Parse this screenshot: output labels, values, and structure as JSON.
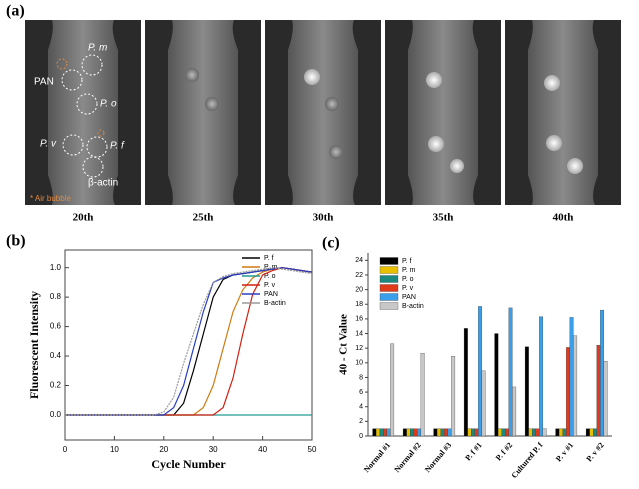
{
  "figure_labels": [
    "(a)",
    "(b)",
    "(c)"
  ],
  "image_panel": {
    "frame_labels": [
      "20th",
      "25th",
      "30th",
      "35th",
      "40th"
    ],
    "target_labels": [
      "P. m",
      "PAN",
      "P. o",
      "P. v",
      "P. f",
      "β-actin"
    ],
    "note": "* Air bubble"
  },
  "chart_data": [
    {
      "type": "line",
      "x_label": "Cycle Number",
      "y_label": "Fluorescent Intensity",
      "x": [
        0,
        2,
        4,
        6,
        8,
        10,
        12,
        14,
        16,
        18,
        20,
        22,
        24,
        26,
        28,
        30,
        32,
        34,
        36,
        38,
        40,
        42,
        44,
        46,
        48,
        50
      ],
      "xlim": [
        0,
        50
      ],
      "xticks": [
        0,
        10,
        20,
        30,
        40,
        50
      ],
      "ylim": [
        -0.17,
        1.12
      ],
      "yticks": [
        {
          "value": 0,
          "label": "0.0"
        },
        0.2,
        0.4,
        0.6,
        0.8,
        {
          "value": 1,
          "label": "1.0"
        }
      ],
      "legend": "upper right",
      "series": [
        {
          "name": "P. f",
          "color": "#000000",
          "values": [
            0,
            0,
            0,
            0,
            0,
            0,
            0,
            0,
            0,
            0,
            0,
            0,
            0.08,
            0.3,
            0.55,
            0.8,
            0.92,
            0.95,
            0.96,
            0.97,
            0.98,
            0.99,
            1.0,
            0.99,
            0.98,
            0.97
          ]
        },
        {
          "name": "P. m",
          "color": "#d07a10",
          "values": [
            0,
            0,
            0,
            0,
            0,
            0,
            0,
            0,
            0,
            0,
            0,
            0,
            0,
            0,
            0.05,
            0.2,
            0.45,
            0.7,
            0.85,
            0.93,
            0.97,
            0.99,
            1.0,
            0.99,
            0.98,
            0.97
          ]
        },
        {
          "name": "P. o",
          "color": "#209a90",
          "values": [
            0,
            0,
            0,
            0,
            0,
            0,
            0,
            0,
            0,
            0,
            0,
            0,
            0,
            0,
            0,
            0,
            0,
            0,
            0,
            0,
            0,
            0,
            0,
            0,
            0,
            0
          ]
        },
        {
          "name": "P. v",
          "color": "#d02010",
          "values": [
            0,
            0,
            0,
            0,
            0,
            0,
            0,
            0,
            0,
            0,
            0,
            0,
            0,
            0,
            0,
            0,
            0.05,
            0.25,
            0.55,
            0.82,
            0.95,
            0.98,
            1.0,
            0.99,
            0.98,
            0.97
          ]
        },
        {
          "name": "PAN",
          "color": "#2a3fc0",
          "values": [
            0,
            0,
            0,
            0,
            0,
            0,
            0,
            0,
            0,
            0,
            0,
            0.05,
            0.2,
            0.45,
            0.7,
            0.9,
            0.93,
            0.95,
            0.96,
            0.97,
            0.98,
            0.99,
            1.0,
            0.99,
            0.98,
            0.97
          ]
        },
        {
          "name": "B-actin",
          "color": "#9a9a9a",
          "values": [
            0,
            0,
            0,
            0,
            0,
            0,
            0,
            0,
            0,
            0,
            0.02,
            0.12,
            0.35,
            0.55,
            0.75,
            0.9,
            0.94,
            0.96,
            0.97,
            0.98,
            0.99,
            1.0,
            0.99,
            0.98,
            0.97,
            0.96
          ]
        }
      ]
    },
    {
      "type": "bar",
      "y_label": "40 - Ct Value",
      "categories": [
        "Normal #1",
        "Normal #2",
        "Normal #3",
        "P. f #1",
        "P. f #2",
        "Cultured P. f",
        "P. v #1",
        "P. v #2"
      ],
      "ylim": [
        0,
        25
      ],
      "yticks": [
        0,
        2,
        4,
        6,
        8,
        10,
        12,
        14,
        16,
        18,
        20,
        22,
        24
      ],
      "legend": "upper left",
      "series": [
        {
          "name": "P. f",
          "color": "#000000",
          "values": [
            1,
            1,
            1,
            14.7,
            14,
            12.2,
            1,
            1
          ]
        },
        {
          "name": "P. m",
          "color": "#e8c000",
          "values": [
            1,
            1,
            1,
            1,
            1,
            1,
            1,
            1
          ]
        },
        {
          "name": "P. o",
          "color": "#1a8a80",
          "values": [
            1,
            1,
            1,
            1,
            1,
            1,
            1,
            1
          ]
        },
        {
          "name": "P. v",
          "color": "#e03a1a",
          "values": [
            1,
            1,
            1,
            1,
            1,
            1,
            12.1,
            12.4
          ]
        },
        {
          "name": "PAN",
          "color": "#3a9ee8",
          "values": [
            1,
            1,
            1,
            17.7,
            17.5,
            16.3,
            16.2,
            17.2
          ]
        },
        {
          "name": "B-actin",
          "color": "#c8c8c8",
          "values": [
            12.6,
            11.3,
            10.9,
            8.9,
            6.7,
            1,
            13.7,
            10.2
          ]
        }
      ]
    }
  ]
}
